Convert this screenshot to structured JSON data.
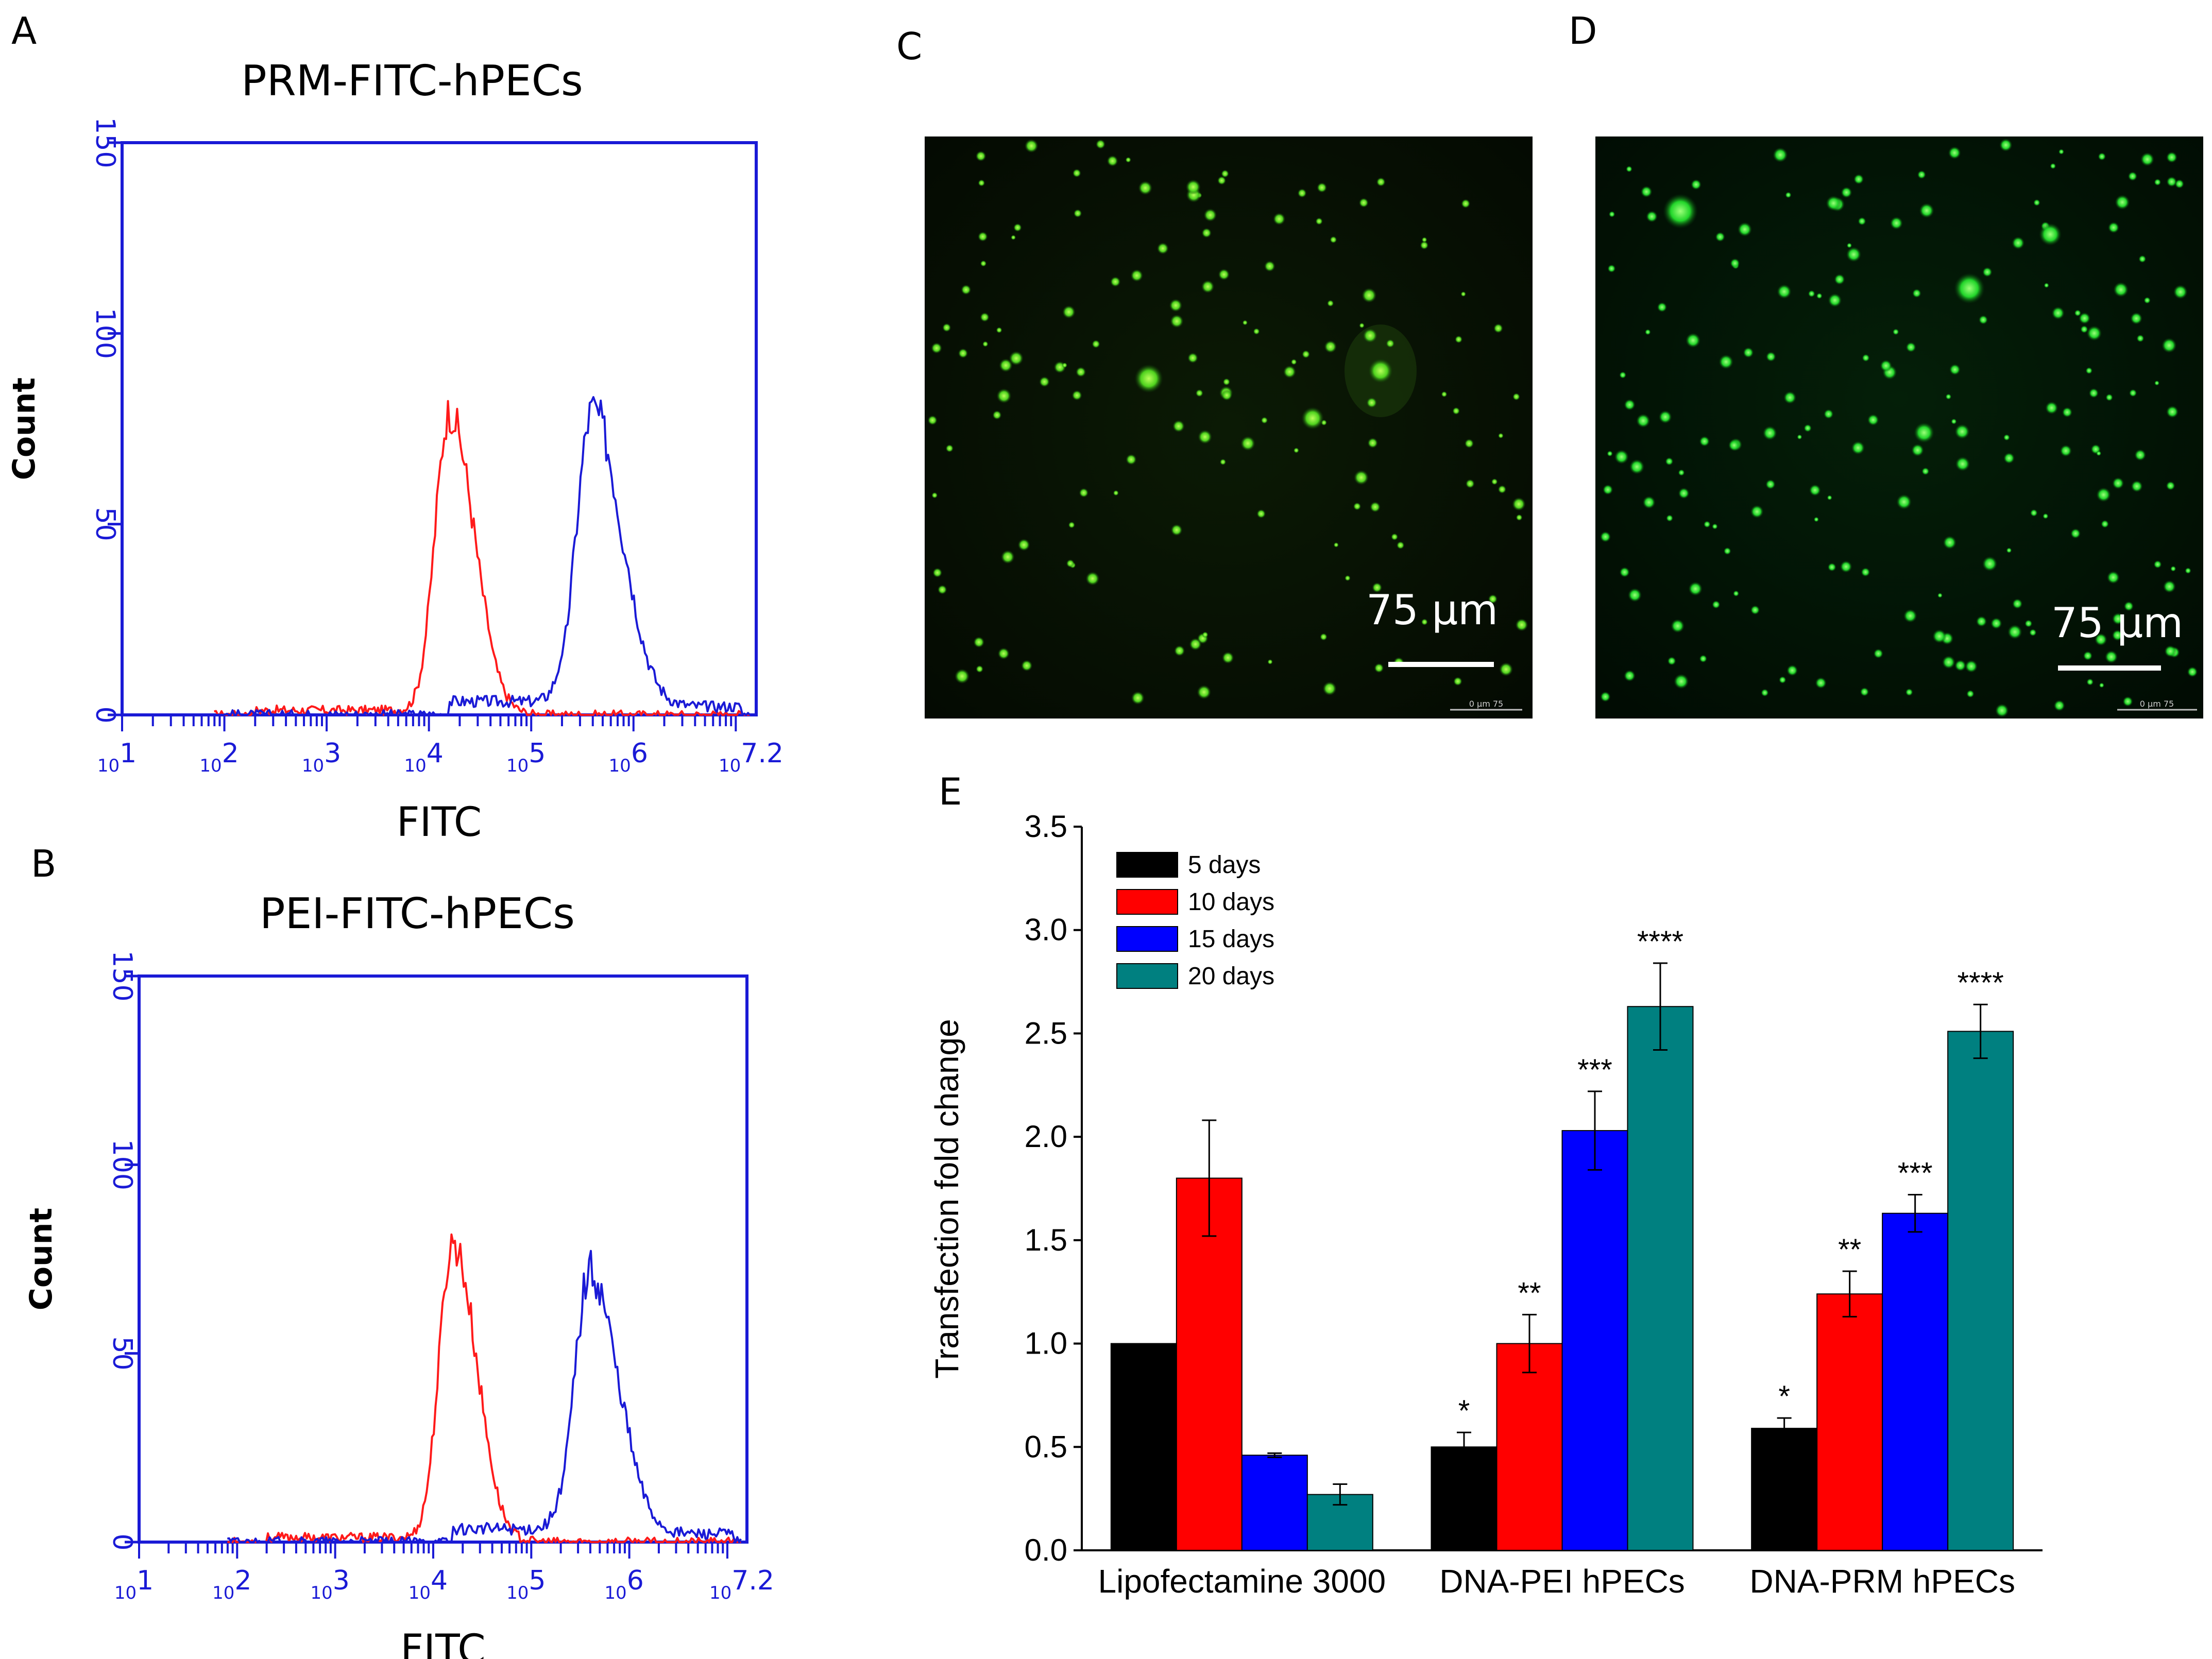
{
  "panels": {
    "A": {
      "letter": "A",
      "title": "PRM-FITC-hPECs",
      "ylabel": "Count",
      "xlabel": "FITC",
      "yticks": [
        "0",
        "50",
        "100",
        "150"
      ],
      "xticks": [
        "10^1",
        "10^2",
        "10^3",
        "10^4",
        "10^5",
        "10^6",
        "10^7.2"
      ],
      "series_colors": {
        "control": "#ff1a1a",
        "sample": "#1a1ad6"
      },
      "peaks": {
        "control_log_fitc": 4.2,
        "control_count": 78,
        "sample_log_fitc": 5.6,
        "sample_count": 80
      }
    },
    "B": {
      "letter": "B",
      "title": "PEI-FITC-hPECs",
      "ylabel": "Count",
      "xlabel": "FITC",
      "yticks": [
        "0",
        "50",
        "100",
        "150"
      ],
      "xticks": [
        "10^1",
        "10^2",
        "10^3",
        "10^4",
        "10^5",
        "10^6",
        "10^7.2"
      ],
      "series_colors": {
        "control": "#ff1a1a",
        "sample": "#1a1ad6"
      },
      "peaks": {
        "control_log_fitc": 4.2,
        "control_count": 78,
        "sample_log_fitc": 5.6,
        "sample_count": 72
      }
    },
    "C": {
      "letter": "C",
      "scale_label": "75 µm",
      "micro_label": "0     µm     75"
    },
    "D": {
      "letter": "D",
      "scale_label": "75 µm",
      "micro_label": "0     µm     75"
    },
    "E": {
      "letter": "E"
    }
  },
  "chart_data": {
    "type": "bar",
    "title": "",
    "xlabel": "",
    "ylabel": "Transfection fold change",
    "ylim": [
      0,
      3.5
    ],
    "yticks": [
      "0.0",
      "0.5",
      "1.0",
      "1.5",
      "2.0",
      "2.5",
      "3.0",
      "3.5"
    ],
    "categories": [
      "Lipofectamine 3000",
      "DNA-PEI hPECs",
      "DNA-PRM hPECs"
    ],
    "series": [
      {
        "name": "5 days",
        "color": "#000000",
        "values": [
          1.0,
          0.5,
          0.59
        ],
        "errors": [
          0,
          0.07,
          0.05
        ],
        "sig": [
          "",
          "*",
          "*"
        ]
      },
      {
        "name": "10 days",
        "color": "#ff0000",
        "values": [
          1.8,
          1.0,
          1.24
        ],
        "errors": [
          0.28,
          0.14,
          0.11
        ],
        "sig": [
          "",
          "**",
          "**"
        ]
      },
      {
        "name": "15 days",
        "color": "#0000ff",
        "values": [
          0.46,
          2.03,
          1.63
        ],
        "errors": [
          0.01,
          0.19,
          0.09
        ],
        "sig": [
          "",
          "***",
          "***"
        ]
      },
      {
        "name": "20 days",
        "color": "#008080",
        "values": [
          0.27,
          2.63,
          2.51
        ],
        "errors": [
          0.05,
          0.21,
          0.13
        ],
        "sig": [
          "",
          "****",
          "****"
        ]
      }
    ],
    "legend": "top-left"
  }
}
